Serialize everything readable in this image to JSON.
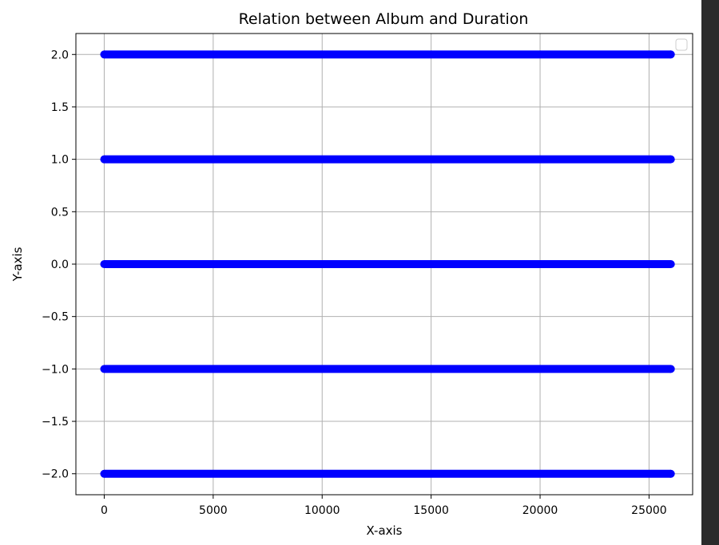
{
  "chart_data": {
    "type": "scatter",
    "title": "Relation between Album and Duration",
    "xlabel": "X-axis",
    "ylabel": "Y-axis",
    "xlim": [
      -1300,
      27000
    ],
    "ylim": [
      -2.2,
      2.2
    ],
    "x_ticks": [
      0,
      5000,
      10000,
      15000,
      20000,
      25000
    ],
    "x_tick_labels": [
      "0",
      "5000",
      "10000",
      "15000",
      "20000",
      "25000"
    ],
    "y_ticks": [
      2.0,
      1.5,
      1.0,
      0.5,
      0.0,
      -0.5,
      -1.0,
      -1.5,
      -2.0
    ],
    "y_tick_labels": [
      "2.0",
      "1.5",
      "1.0",
      "0.5",
      "0.0",
      "−0.5",
      "−1.0",
      "−1.5",
      "−2.0"
    ],
    "grid": true,
    "legend": "top-right (empty)",
    "marker_color": "#0000ff",
    "series": [
      {
        "color": "#0000ff",
        "marker": "circle",
        "x_range": [
          0,
          26000
        ],
        "y_levels": [
          2.0,
          1.0,
          0.0,
          -1.0,
          -2.0
        ]
      }
    ]
  },
  "colors": {
    "points": "#0000ff",
    "grid": "#b0b0b0",
    "axes": "#000000",
    "figure_background": "#ffffff",
    "side_strip": "#2b2b2b"
  }
}
